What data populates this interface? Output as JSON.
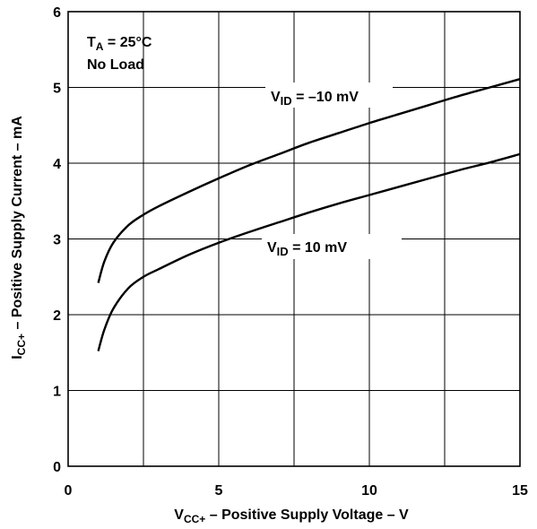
{
  "chart_data": {
    "type": "line",
    "title": "",
    "xlabel": {
      "main": "V",
      "sub": "CC+",
      "rest": " – Positive Supply Voltage – V"
    },
    "ylabel": {
      "main": "I",
      "sub": "CC+",
      "rest": " – Positive Supply Current – mA"
    },
    "xlim": [
      0,
      15
    ],
    "ylim": [
      0,
      6
    ],
    "x_ticks": [
      0,
      5,
      10,
      15
    ],
    "x_tick_labels": [
      "0",
      "5",
      "10",
      "15"
    ],
    "y_ticks": [
      0,
      1,
      2,
      3,
      4,
      5,
      6
    ],
    "y_tick_labels": [
      "0",
      "1",
      "2",
      "3",
      "4",
      "5",
      "6"
    ],
    "x_grid": [
      0,
      2.5,
      5,
      7.5,
      10,
      12.5,
      15
    ],
    "grid": true,
    "conditions": {
      "line1": {
        "main": "T",
        "sub": "A",
        "rest": " = 25°C"
      },
      "line2": "No Load"
    },
    "series": [
      {
        "label": {
          "main": "V",
          "sub": "ID",
          "rest": " = –10 mV"
        },
        "x": [
          1,
          1.2,
          1.5,
          2,
          2.5,
          3,
          4,
          5,
          6,
          7,
          8,
          9,
          10,
          11,
          12,
          13,
          14,
          15
        ],
        "y": [
          2.42,
          2.7,
          2.95,
          3.18,
          3.32,
          3.43,
          3.62,
          3.8,
          3.97,
          4.12,
          4.27,
          4.4,
          4.53,
          4.65,
          4.77,
          4.89,
          5.0,
          5.11
        ]
      },
      {
        "label": {
          "main": "V",
          "sub": "ID",
          "rest": " = 10 mV"
        },
        "x": [
          1,
          1.2,
          1.5,
          2,
          2.5,
          3,
          4,
          5,
          6,
          7,
          8,
          9,
          10,
          11,
          12,
          13,
          14,
          15
        ],
        "y": [
          1.52,
          1.8,
          2.08,
          2.35,
          2.5,
          2.6,
          2.79,
          2.95,
          3.09,
          3.22,
          3.35,
          3.47,
          3.58,
          3.69,
          3.8,
          3.91,
          4.01,
          4.12
        ]
      }
    ]
  }
}
